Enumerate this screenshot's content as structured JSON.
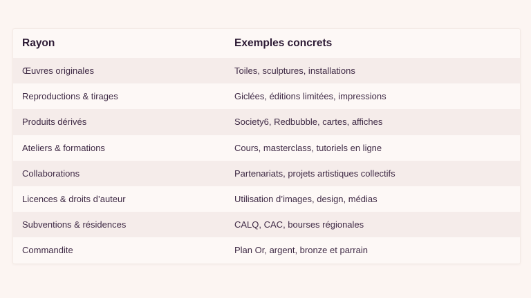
{
  "table": {
    "headers": [
      "Rayon",
      "Exemples concrets"
    ],
    "rows": [
      [
        "Œuvres originales",
        "Toiles, sculptures, installations"
      ],
      [
        "Reproductions & tirages",
        "Giclées, éditions limitées, impressions"
      ],
      [
        "Produits dérivés",
        "Society6, Redbubble, cartes, affiches"
      ],
      [
        "Ateliers & formations",
        "Cours, masterclass, tutoriels en ligne"
      ],
      [
        "Collaborations",
        "Partenariats, projets artistiques collectifs"
      ],
      [
        "Licences & droits d’auteur",
        "Utilisation d’images, design, médias"
      ],
      [
        "Subventions & résidences",
        "CALQ, CAC, bourses régionales"
      ],
      [
        "Commandite",
        "Plan Or, argent, bronze et parrain"
      ]
    ]
  }
}
